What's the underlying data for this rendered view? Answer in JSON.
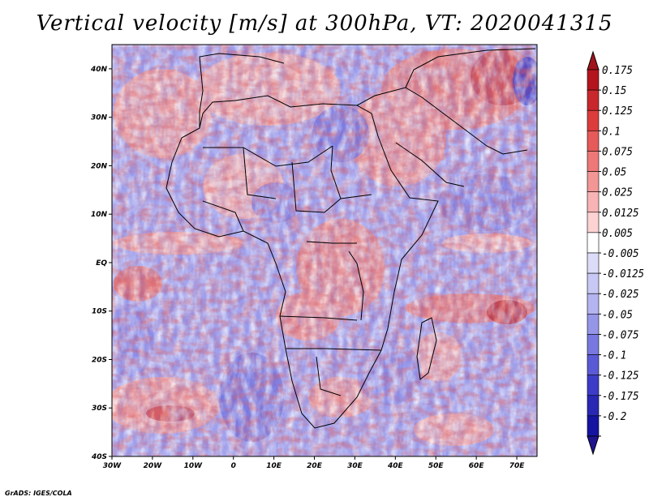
{
  "title": "Vertical velocity [m/s] at 300hPa, VT: 2020041315",
  "credit": "GrADS: IGES/COLA",
  "map": {
    "projection": "latlon",
    "lon_range": [
      -30,
      75
    ],
    "lat_range": [
      -40,
      45
    ],
    "lon_ticks": [
      {
        "value": -30,
        "label": "30W"
      },
      {
        "value": -20,
        "label": "20W"
      },
      {
        "value": -10,
        "label": "10W"
      },
      {
        "value": 0,
        "label": "0"
      },
      {
        "value": 10,
        "label": "10E"
      },
      {
        "value": 20,
        "label": "20E"
      },
      {
        "value": 30,
        "label": "30E"
      },
      {
        "value": 40,
        "label": "40E"
      },
      {
        "value": 50,
        "label": "50E"
      },
      {
        "value": 60,
        "label": "60E"
      },
      {
        "value": 70,
        "label": "70E"
      }
    ],
    "lat_ticks": [
      {
        "value": 40,
        "label": "40N"
      },
      {
        "value": 30,
        "label": "30N"
      },
      {
        "value": 20,
        "label": "20N"
      },
      {
        "value": 10,
        "label": "10N"
      },
      {
        "value": 0,
        "label": "EQ"
      },
      {
        "value": -10,
        "label": "10S"
      },
      {
        "value": -20,
        "label": "20S"
      },
      {
        "value": -30,
        "label": "30S"
      },
      {
        "value": -40,
        "label": "40S"
      }
    ],
    "coastline_icon": "africa-coastline"
  },
  "colorbar": {
    "labels": [
      "0.175",
      "0.15",
      "0.125",
      "0.1",
      "0.075",
      "0.05",
      "0.025",
      "0.0125",
      "0.005",
      "-0.005",
      "-0.0125",
      "-0.025",
      "-0.05",
      "-0.075",
      "-0.1",
      "-0.125",
      "-0.175",
      "-0.2"
    ],
    "colors": [
      "#b4141e",
      "#c8282d",
      "#dc3c3c",
      "#e65a5a",
      "#ee7878",
      "#f29696",
      "#f8b4b4",
      "#fcd2d2",
      "#ffffff",
      "#dcdcf8",
      "#c8c8f4",
      "#b4b4f0",
      "#9696e8",
      "#7878e0",
      "#5a5ad6",
      "#3c3cc8",
      "#2828b4",
      "#1414a0"
    ],
    "top_arrow_color": "#a0141e",
    "bottom_arrow_color": "#1e1490"
  }
}
